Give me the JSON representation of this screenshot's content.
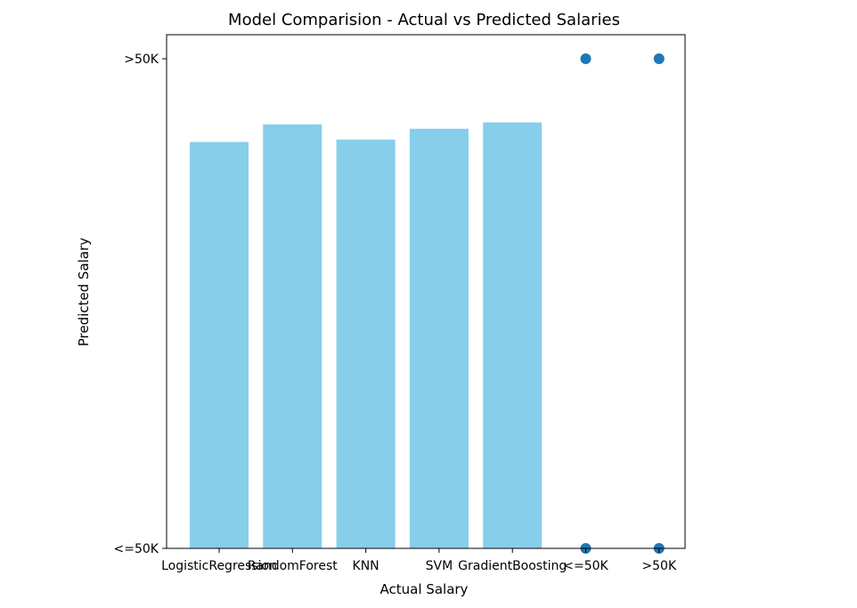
{
  "chart_data": {
    "type": "bar",
    "title": "Model Comparision - Actual vs Predicted Salaries",
    "xlabel": "Actual Salary",
    "ylabel": "Predicted Salary",
    "categories": [
      "LogisticRegression",
      "RandomForest",
      "KNN",
      "SVM",
      "GradientBoosting",
      "<=50K",
      ">50K"
    ],
    "ytick_labels": [
      "<=50K",
      ">50K"
    ],
    "ylim": [
      0,
      1.05
    ],
    "yticks": [
      0,
      1
    ],
    "bars": {
      "color": "#87ceeb",
      "categories": [
        "LogisticRegression",
        "RandomForest",
        "KNN",
        "SVM",
        "GradientBoosting"
      ],
      "values": [
        0.83,
        0.866,
        0.835,
        0.857,
        0.87
      ]
    },
    "scatter": {
      "color": "#1f77b4",
      "points": [
        {
          "x": "<=50K",
          "y": 0
        },
        {
          "x": "<=50K",
          "y": 1
        },
        {
          "x": ">50K",
          "y": 0
        },
        {
          "x": ">50K",
          "y": 1
        }
      ]
    },
    "grid": false,
    "legend": false
  }
}
